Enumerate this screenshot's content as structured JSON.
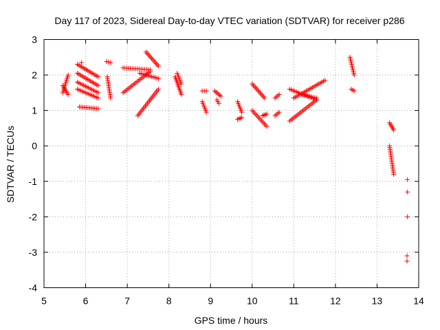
{
  "chart_data": {
    "type": "scatter",
    "title": "Day 117 of 2023, Sidereal Day-to-day VTEC variation (SDTVAR) for receiver p286",
    "xlabel": "GPS time / hours",
    "ylabel": "SDTVAR / TECUs",
    "xlim": [
      5,
      14
    ],
    "ylim": [
      -4,
      3
    ],
    "xticks": [
      "5",
      "6",
      "7",
      "8",
      "9",
      "10",
      "11",
      "12",
      "13",
      "14"
    ],
    "yticks": [
      "-4",
      "-3",
      "-2",
      "-1",
      "0",
      "1",
      "2",
      "3"
    ],
    "grid": true,
    "marker": "+",
    "color": "#ff0000",
    "segments": [
      {
        "x0": 5.45,
        "x1": 5.58,
        "y0": 1.5,
        "y1": 2.0
      },
      {
        "x0": 5.45,
        "x1": 5.58,
        "y0": 1.7,
        "y1": 1.45
      },
      {
        "x0": 5.8,
        "x1": 6.3,
        "y0": 2.3,
        "y1": 1.95
      },
      {
        "x0": 5.8,
        "x1": 6.3,
        "y0": 2.05,
        "y1": 1.7
      },
      {
        "x0": 5.8,
        "x1": 6.3,
        "y0": 1.8,
        "y1": 1.5
      },
      {
        "x0": 5.8,
        "x1": 6.3,
        "y0": 1.6,
        "y1": 1.35
      },
      {
        "x0": 5.85,
        "x1": 6.3,
        "y0": 1.1,
        "y1": 1.05
      },
      {
        "x0": 6.5,
        "x1": 6.6,
        "y0": 2.38,
        "y1": 2.35
      },
      {
        "x0": 6.52,
        "x1": 6.6,
        "y0": 1.95,
        "y1": 1.35
      },
      {
        "x0": 6.9,
        "x1": 7.55,
        "y0": 2.2,
        "y1": 2.15
      },
      {
        "x0": 6.9,
        "x1": 7.55,
        "y0": 1.5,
        "y1": 2.1
      },
      {
        "x0": 7.45,
        "x1": 7.75,
        "y0": 2.65,
        "y1": 2.25
      },
      {
        "x0": 7.3,
        "x1": 7.75,
        "y0": 2.05,
        "y1": 1.9
      },
      {
        "x0": 7.25,
        "x1": 7.75,
        "y0": 0.85,
        "y1": 1.6
      },
      {
        "x0": 8.15,
        "x1": 8.3,
        "y0": 1.95,
        "y1": 1.45
      },
      {
        "x0": 8.2,
        "x1": 8.3,
        "y0": 2.05,
        "y1": 1.75
      },
      {
        "x0": 8.8,
        "x1": 8.9,
        "y0": 1.55,
        "y1": 1.55
      },
      {
        "x0": 8.8,
        "x1": 8.9,
        "y0": 1.25,
        "y1": 0.95
      },
      {
        "x0": 9.1,
        "x1": 9.25,
        "y0": 1.55,
        "y1": 1.4
      },
      {
        "x0": 9.15,
        "x1": 9.2,
        "y0": 1.3,
        "y1": 1.2
      },
      {
        "x0": 9.65,
        "x1": 9.75,
        "y0": 1.25,
        "y1": 0.95
      },
      {
        "x0": 9.65,
        "x1": 9.75,
        "y0": 0.75,
        "y1": 0.8
      },
      {
        "x0": 10.0,
        "x1": 10.3,
        "y0": 1.75,
        "y1": 1.35
      },
      {
        "x0": 10.0,
        "x1": 10.35,
        "y0": 1.0,
        "y1": 0.55
      },
      {
        "x0": 10.25,
        "x1": 10.35,
        "y0": 0.85,
        "y1": 0.9
      },
      {
        "x0": 10.55,
        "x1": 10.65,
        "y0": 0.85,
        "y1": 0.95
      },
      {
        "x0": 10.55,
        "x1": 10.65,
        "y0": 1.35,
        "y1": 1.45
      },
      {
        "x0": 10.9,
        "x1": 11.55,
        "y0": 0.7,
        "y1": 1.3
      },
      {
        "x0": 10.9,
        "x1": 11.55,
        "y0": 1.6,
        "y1": 1.3
      },
      {
        "x0": 11.0,
        "x1": 11.75,
        "y0": 1.35,
        "y1": 1.85
      },
      {
        "x0": 11.2,
        "x1": 11.55,
        "y0": 1.45,
        "y1": 1.35
      },
      {
        "x0": 12.35,
        "x1": 12.45,
        "y0": 2.5,
        "y1": 2.0
      },
      {
        "x0": 12.38,
        "x1": 12.45,
        "y0": 1.6,
        "y1": 1.55
      },
      {
        "x0": 13.3,
        "x1": 13.4,
        "y0": 0.65,
        "y1": 0.45
      },
      {
        "x0": 13.3,
        "x1": 13.4,
        "y0": 0.0,
        "y1": -0.8
      }
    ],
    "points": [
      {
        "x": 5.9,
        "y": 2.35
      },
      {
        "x": 13.73,
        "y": -0.95
      },
      {
        "x": 13.73,
        "y": -1.3
      },
      {
        "x": 13.73,
        "y": -2.0
      },
      {
        "x": 13.72,
        "y": -3.1
      },
      {
        "x": 13.72,
        "y": -3.25
      }
    ]
  }
}
